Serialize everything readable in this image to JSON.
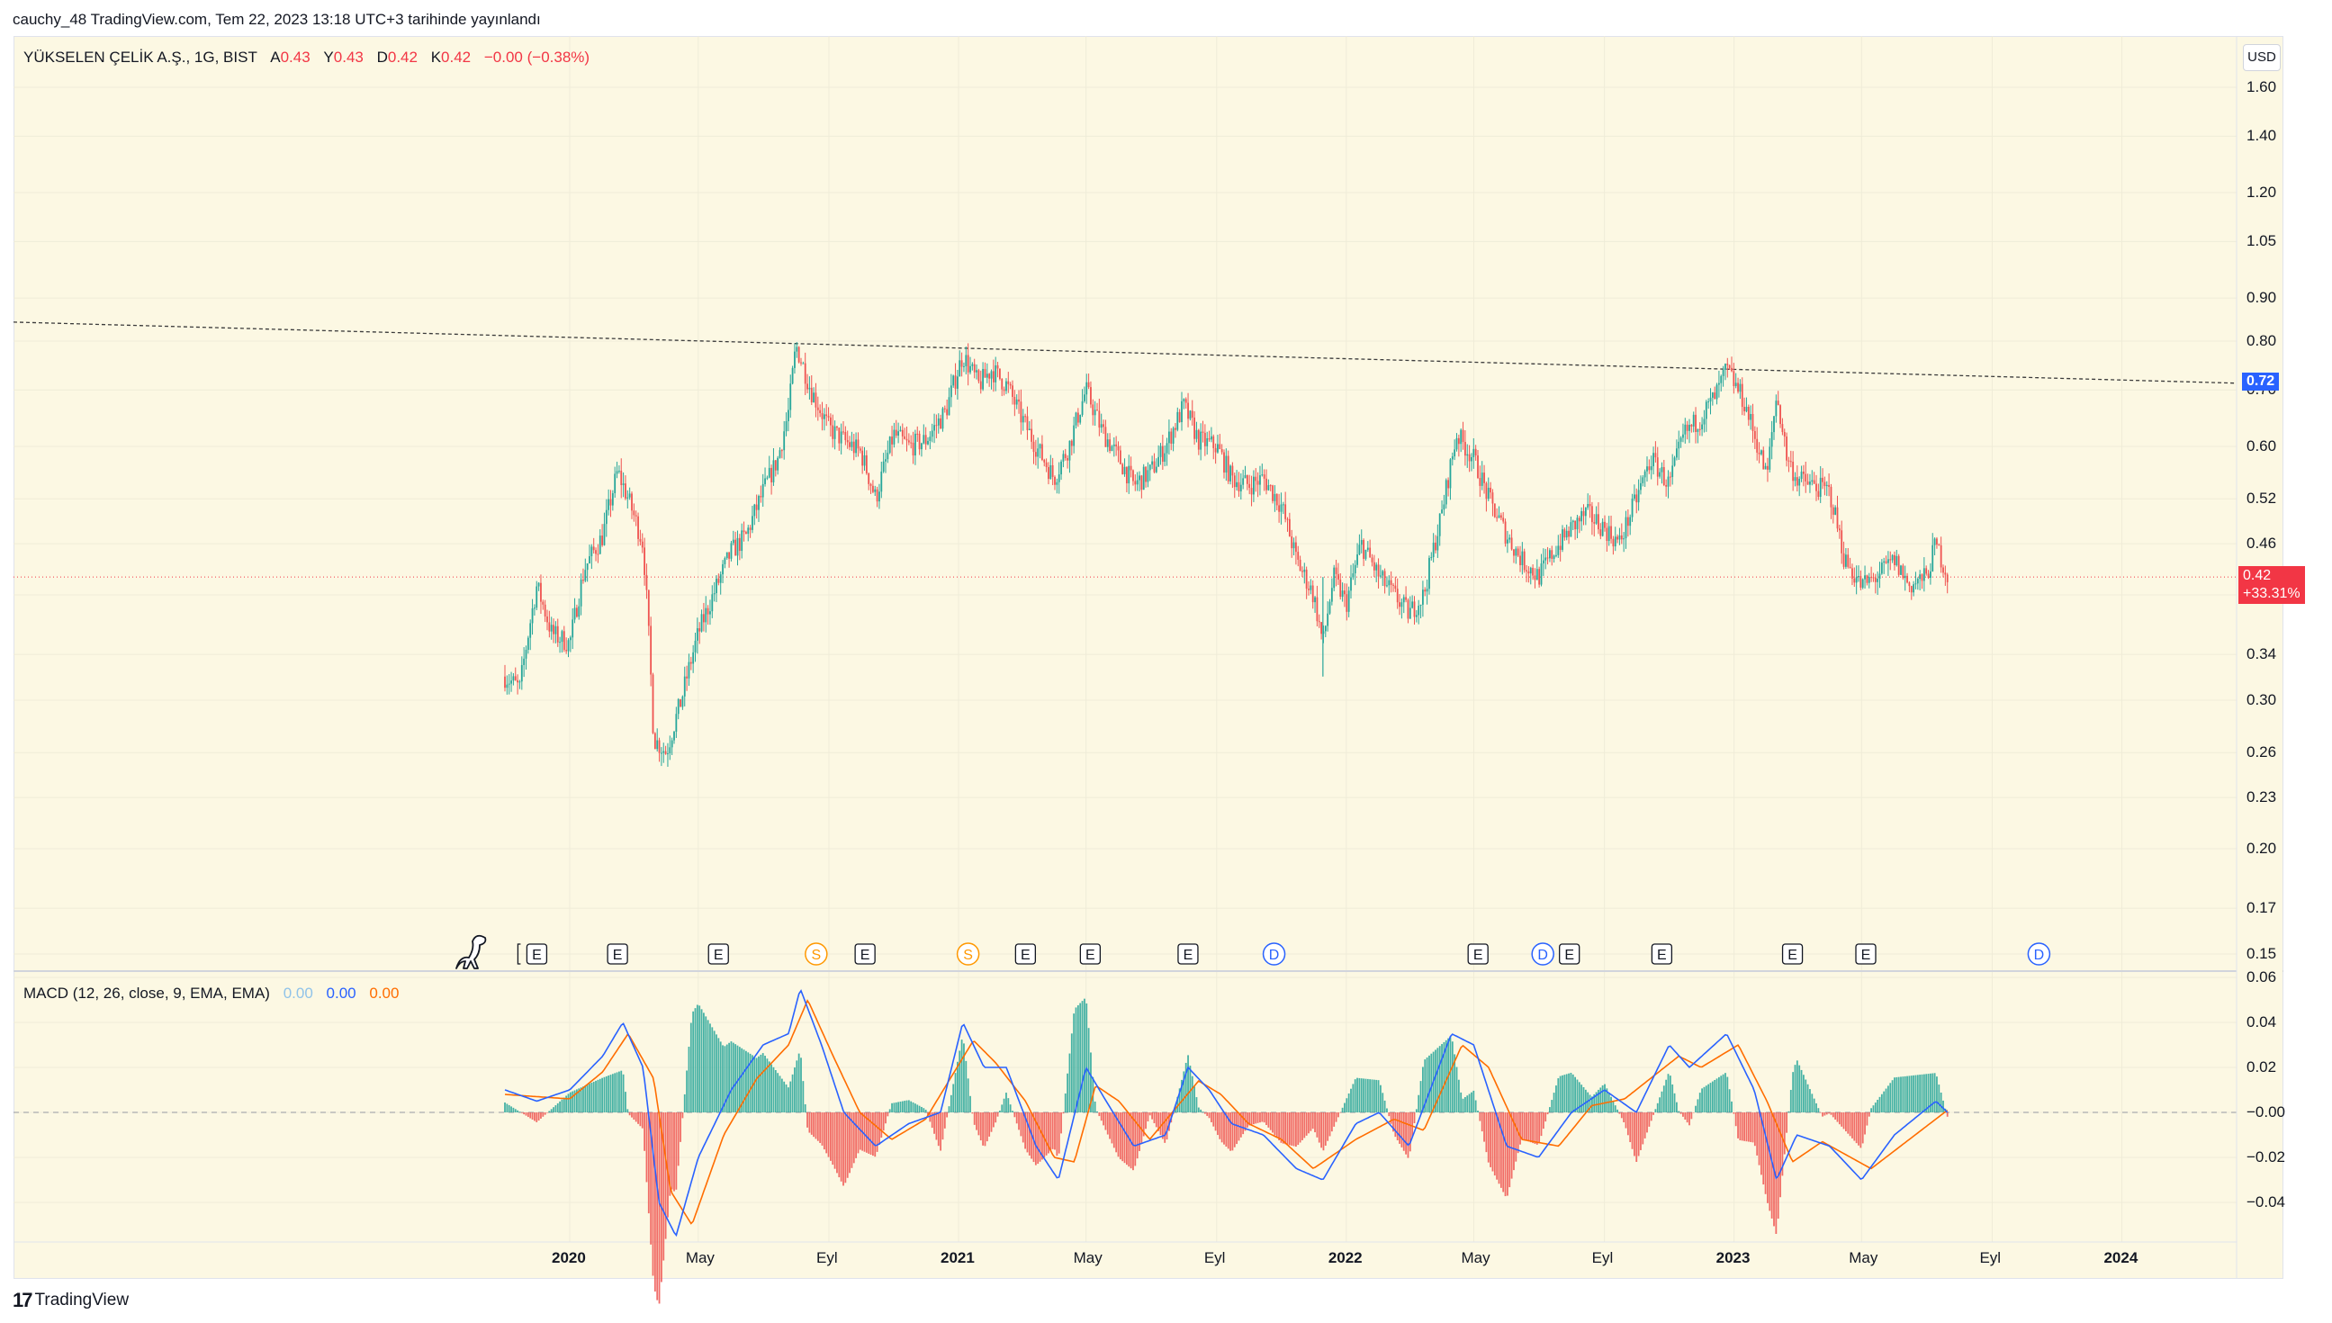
{
  "published": "cauchy_48 TradingView.com, Tem 22, 2023 13:18 UTC+3 tarihinde yayınlandı",
  "legend": {
    "symbol": "YÜKSELEN ÇELİK A.Ş., 1G, BIST",
    "open_label": "A",
    "open": "0.43",
    "high_label": "Y",
    "high": "0.43",
    "low_label": "D",
    "low": "0.42",
    "close_label": "K",
    "close": "0.42",
    "change": "−0.00 (−0.38%)"
  },
  "currency": "USD",
  "macd_legend": {
    "title": "MACD (12, 26, close, 9, EMA, EMA)",
    "hist": "0.00",
    "macd": "0.00",
    "signal": "0.00"
  },
  "price_tag": {
    "value": "0.42",
    "change": "+33.31%"
  },
  "trend_tag": {
    "value": "0.72"
  },
  "footer": {
    "brand": "TradingView"
  },
  "colors": {
    "up": "#26a69a",
    "down": "#ef5350",
    "macd": "#2962ff",
    "signal": "#ff6d00",
    "background": "#fcf8e3",
    "price_tag": "#f23645",
    "trend_tag": "#2962ff"
  },
  "chart_data": {
    "type": "line",
    "scale": "log",
    "price_axis": [
      "1.60",
      "1.40",
      "1.20",
      "1.05",
      "0.90",
      "0.80",
      "0.70",
      "0.60",
      "0.52",
      "0.46",
      "0.40",
      "0.34",
      "0.30",
      "0.26",
      "0.23",
      "0.20",
      "0.17",
      "0.15"
    ],
    "macd_axis": [
      "0.06",
      "0.04",
      "0.02",
      "−0.00",
      "−0.02",
      "−0.04"
    ],
    "time_axis": [
      "2020",
      "May",
      "Eyl",
      "2021",
      "May",
      "Eyl",
      "2022",
      "May",
      "Eyl",
      "2023",
      "May",
      "Eyl",
      "2024"
    ],
    "price_series": [
      [
        "2019-11-01",
        0.32
      ],
      [
        "2019-11-15",
        0.31
      ],
      [
        "2019-12-01",
        0.41
      ],
      [
        "2019-12-15",
        0.36
      ],
      [
        "2020-01-01",
        0.35
      ],
      [
        "2020-01-15",
        0.43
      ],
      [
        "2020-02-01",
        0.47
      ],
      [
        "2020-02-15",
        0.56
      ],
      [
        "2020-02-25",
        0.52
      ],
      [
        "2020-03-10",
        0.46
      ],
      [
        "2020-03-20",
        0.27
      ],
      [
        "2020-04-01",
        0.26
      ],
      [
        "2020-04-15",
        0.3
      ],
      [
        "2020-05-01",
        0.36
      ],
      [
        "2020-05-15",
        0.4
      ],
      [
        "2020-06-01",
        0.45
      ],
      [
        "2020-06-15",
        0.47
      ],
      [
        "2020-07-01",
        0.53
      ],
      [
        "2020-07-15",
        0.58
      ],
      [
        "2020-07-25",
        0.66
      ],
      [
        "2020-08-01",
        0.79
      ],
      [
        "2020-08-15",
        0.7
      ],
      [
        "2020-09-01",
        0.63
      ],
      [
        "2020-09-15",
        0.61
      ],
      [
        "2020-10-01",
        0.59
      ],
      [
        "2020-10-15",
        0.52
      ],
      [
        "2020-11-01",
        0.62
      ],
      [
        "2020-11-15",
        0.6
      ],
      [
        "2020-12-01",
        0.61
      ],
      [
        "2020-12-20",
        0.66
      ],
      [
        "2021-01-05",
        0.77
      ],
      [
        "2021-01-20",
        0.71
      ],
      [
        "2021-02-01",
        0.74
      ],
      [
        "2021-02-15",
        0.71
      ],
      [
        "2021-03-01",
        0.65
      ],
      [
        "2021-03-15",
        0.6
      ],
      [
        "2021-04-01",
        0.55
      ],
      [
        "2021-04-15",
        0.6
      ],
      [
        "2021-05-01",
        0.7
      ],
      [
        "2021-05-15",
        0.63
      ],
      [
        "2021-06-01",
        0.58
      ],
      [
        "2021-06-15",
        0.54
      ],
      [
        "2021-07-01",
        0.56
      ],
      [
        "2021-07-15",
        0.6
      ],
      [
        "2021-08-01",
        0.67
      ],
      [
        "2021-08-15",
        0.61
      ],
      [
        "2021-09-01",
        0.6
      ],
      [
        "2021-09-15",
        0.55
      ],
      [
        "2021-10-01",
        0.54
      ],
      [
        "2021-10-15",
        0.55
      ],
      [
        "2021-11-01",
        0.51
      ],
      [
        "2021-11-15",
        0.44
      ],
      [
        "2021-12-01",
        0.4
      ],
      [
        "2021-12-10",
        0.35
      ],
      [
        "2021-12-20",
        0.42
      ],
      [
        "2022-01-01",
        0.39
      ],
      [
        "2022-01-15",
        0.46
      ],
      [
        "2022-02-01",
        0.42
      ],
      [
        "2022-02-15",
        0.4
      ],
      [
        "2022-03-01",
        0.38
      ],
      [
        "2022-03-15",
        0.4
      ],
      [
        "2022-04-01",
        0.5
      ],
      [
        "2022-04-15",
        0.62
      ],
      [
        "2022-05-01",
        0.58
      ],
      [
        "2022-05-15",
        0.52
      ],
      [
        "2022-06-01",
        0.47
      ],
      [
        "2022-06-15",
        0.44
      ],
      [
        "2022-07-01",
        0.42
      ],
      [
        "2022-07-15",
        0.45
      ],
      [
        "2022-08-01",
        0.48
      ],
      [
        "2022-08-15",
        0.5
      ],
      [
        "2022-09-01",
        0.48
      ],
      [
        "2022-09-15",
        0.46
      ],
      [
        "2022-10-01",
        0.52
      ],
      [
        "2022-10-15",
        0.58
      ],
      [
        "2022-11-01",
        0.54
      ],
      [
        "2022-11-15",
        0.62
      ],
      [
        "2022-12-01",
        0.65
      ],
      [
        "2022-12-15",
        0.69
      ],
      [
        "2022-12-25",
        0.74
      ],
      [
        "2023-01-10",
        0.68
      ],
      [
        "2023-01-20",
        0.62
      ],
      [
        "2023-02-01",
        0.55
      ],
      [
        "2023-02-10",
        0.69
      ],
      [
        "2023-02-20",
        0.58
      ],
      [
        "2023-03-01",
        0.55
      ],
      [
        "2023-03-15",
        0.54
      ],
      [
        "2023-04-01",
        0.53
      ],
      [
        "2023-04-15",
        0.44
      ],
      [
        "2023-05-01",
        0.41
      ],
      [
        "2023-05-15",
        0.42
      ],
      [
        "2023-06-01",
        0.44
      ],
      [
        "2023-06-15",
        0.41
      ],
      [
        "2023-07-01",
        0.42
      ],
      [
        "2023-07-10",
        0.46
      ],
      [
        "2023-07-21",
        0.42
      ]
    ],
    "trendline": {
      "start": [
        "2019-02-01",
        0.83
      ],
      "end": [
        "2023-12-20",
        0.72
      ]
    },
    "last_price_line": 0.42,
    "macd_series": [
      [
        "2019-11-01",
        0.01
      ],
      [
        "2019-12-01",
        0.005
      ],
      [
        "2020-01-01",
        0.01
      ],
      [
        "2020-02-01",
        0.025
      ],
      [
        "2020-02-20",
        0.04
      ],
      [
        "2020-03-10",
        0.02
      ],
      [
        "2020-03-25",
        -0.04
      ],
      [
        "2020-04-10",
        -0.055
      ],
      [
        "2020-05-01",
        -0.02
      ],
      [
        "2020-06-01",
        0.01
      ],
      [
        "2020-07-01",
        0.03
      ],
      [
        "2020-07-25",
        0.035
      ],
      [
        "2020-08-05",
        0.055
      ],
      [
        "2020-08-25",
        0.03
      ],
      [
        "2020-09-15",
        0.0
      ],
      [
        "2020-10-15",
        -0.015
      ],
      [
        "2020-11-15",
        -0.005
      ],
      [
        "2020-12-15",
        0.0
      ],
      [
        "2021-01-05",
        0.04
      ],
      [
        "2021-01-25",
        0.02
      ],
      [
        "2021-02-15",
        0.02
      ],
      [
        "2021-03-15",
        -0.015
      ],
      [
        "2021-04-05",
        -0.03
      ],
      [
        "2021-05-01",
        0.02
      ],
      [
        "2021-05-20",
        0.005
      ],
      [
        "2021-06-15",
        -0.015
      ],
      [
        "2021-07-15",
        -0.01
      ],
      [
        "2021-08-05",
        0.02
      ],
      [
        "2021-08-25",
        0.01
      ],
      [
        "2021-09-15",
        -0.005
      ],
      [
        "2021-10-15",
        -0.01
      ],
      [
        "2021-11-15",
        -0.025
      ],
      [
        "2021-12-10",
        -0.03
      ],
      [
        "2022-01-10",
        -0.005
      ],
      [
        "2022-02-01",
        0.0
      ],
      [
        "2022-03-01",
        -0.015
      ],
      [
        "2022-04-10",
        0.035
      ],
      [
        "2022-05-01",
        0.03
      ],
      [
        "2022-06-01",
        -0.015
      ],
      [
        "2022-07-01",
        -0.02
      ],
      [
        "2022-08-01",
        0.0
      ],
      [
        "2022-09-01",
        0.01
      ],
      [
        "2022-10-01",
        0.0
      ],
      [
        "2022-11-01",
        0.03
      ],
      [
        "2022-11-20",
        0.02
      ],
      [
        "2022-12-25",
        0.035
      ],
      [
        "2023-01-20",
        0.01
      ],
      [
        "2023-02-10",
        -0.03
      ],
      [
        "2023-03-01",
        -0.01
      ],
      [
        "2023-04-01",
        -0.015
      ],
      [
        "2023-05-01",
        -0.03
      ],
      [
        "2023-06-01",
        -0.01
      ],
      [
        "2023-07-10",
        0.005
      ],
      [
        "2023-07-21",
        0.0
      ]
    ],
    "signal_series": [
      [
        "2019-11-01",
        0.008
      ],
      [
        "2019-12-01",
        0.007
      ],
      [
        "2020-01-01",
        0.006
      ],
      [
        "2020-02-01",
        0.018
      ],
      [
        "2020-02-25",
        0.035
      ],
      [
        "2020-03-20",
        0.015
      ],
      [
        "2020-04-05",
        -0.035
      ],
      [
        "2020-04-25",
        -0.05
      ],
      [
        "2020-05-25",
        -0.01
      ],
      [
        "2020-06-25",
        0.015
      ],
      [
        "2020-07-25",
        0.03
      ],
      [
        "2020-08-12",
        0.05
      ],
      [
        "2020-09-05",
        0.025
      ],
      [
        "2020-09-30",
        0.0
      ],
      [
        "2020-10-30",
        -0.012
      ],
      [
        "2020-12-01",
        -0.003
      ],
      [
        "2021-01-15",
        0.032
      ],
      [
        "2021-02-05",
        0.022
      ],
      [
        "2021-03-05",
        0.005
      ],
      [
        "2021-04-01",
        -0.02
      ],
      [
        "2021-04-20",
        -0.022
      ],
      [
        "2021-05-10",
        0.012
      ],
      [
        "2021-06-01",
        0.005
      ],
      [
        "2021-06-30",
        -0.012
      ],
      [
        "2021-08-15",
        0.014
      ],
      [
        "2021-09-05",
        0.008
      ],
      [
        "2021-10-01",
        -0.005
      ],
      [
        "2021-11-01",
        -0.012
      ],
      [
        "2021-12-01",
        -0.025
      ],
      [
        "2022-01-10",
        -0.012
      ],
      [
        "2022-02-15",
        -0.003
      ],
      [
        "2022-03-15",
        -0.008
      ],
      [
        "2022-04-20",
        0.03
      ],
      [
        "2022-05-15",
        0.02
      ],
      [
        "2022-06-15",
        -0.012
      ],
      [
        "2022-07-20",
        -0.015
      ],
      [
        "2022-08-20",
        0.003
      ],
      [
        "2022-09-20",
        0.006
      ],
      [
        "2022-11-10",
        0.025
      ],
      [
        "2022-12-01",
        0.02
      ],
      [
        "2023-01-05",
        0.03
      ],
      [
        "2023-02-01",
        0.005
      ],
      [
        "2023-02-25",
        -0.022
      ],
      [
        "2023-03-25",
        -0.013
      ],
      [
        "2023-05-10",
        -0.025
      ],
      [
        "2023-06-15",
        -0.012
      ],
      [
        "2023-07-21",
        0.001
      ]
    ],
    "events": [
      {
        "label": "E",
        "date": "2019-12-01"
      },
      {
        "label": "E",
        "date": "2020-02-15"
      },
      {
        "label": "E",
        "date": "2020-05-20"
      },
      {
        "label": "S",
        "date": "2020-08-20"
      },
      {
        "label": "E",
        "date": "2020-10-05"
      },
      {
        "label": "S",
        "date": "2021-01-10"
      },
      {
        "label": "E",
        "date": "2021-03-05"
      },
      {
        "label": "E",
        "date": "2021-05-05"
      },
      {
        "label": "E",
        "date": "2021-08-05"
      },
      {
        "label": "D",
        "date": "2021-10-25"
      },
      {
        "label": "E",
        "date": "2022-05-05"
      },
      {
        "label": "D",
        "date": "2022-07-05"
      },
      {
        "label": "E",
        "date": "2022-07-30"
      },
      {
        "label": "E",
        "date": "2022-10-25"
      },
      {
        "label": "E",
        "date": "2023-02-25"
      },
      {
        "label": "E",
        "date": "2023-05-05"
      },
      {
        "label": "D",
        "date": "2023-10-15"
      }
    ]
  }
}
